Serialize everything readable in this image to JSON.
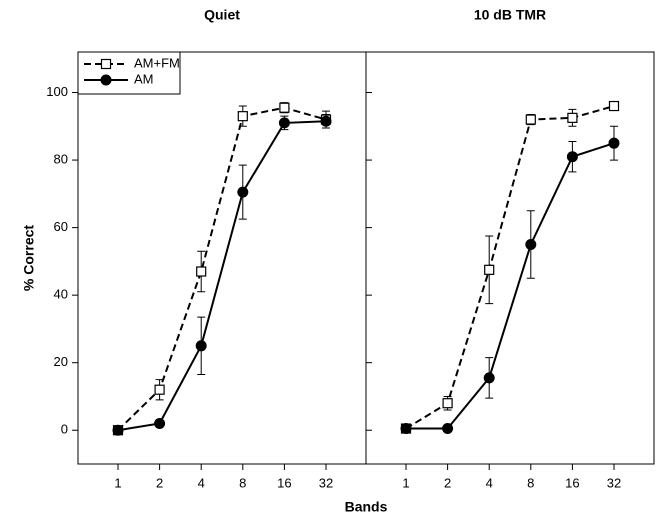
{
  "xlabel": "Bands",
  "ylabel": "% Correct",
  "chart_data": [
    {
      "type": "line",
      "title": "Quiet",
      "legend": "upper left",
      "categories": [
        "1",
        "2",
        "4",
        "8",
        "16",
        "32"
      ],
      "ylim": [
        -10,
        112
      ],
      "yticks": [
        0,
        20,
        40,
        60,
        80,
        100
      ],
      "series": [
        {
          "name": "AM+FM",
          "color": "#000000",
          "dash": true,
          "marker": "square-open",
          "values": [
            0,
            12,
            47,
            93,
            95.5,
            92
          ],
          "errors": [
            0,
            3,
            6,
            3,
            1.5,
            2.5
          ]
        },
        {
          "name": "AM",
          "color": "#000000",
          "dash": false,
          "marker": "circle-filled",
          "values": [
            0,
            2,
            25,
            70.5,
            91,
            91.5
          ],
          "errors": [
            0,
            0,
            8.5,
            8,
            2,
            2
          ]
        }
      ]
    },
    {
      "type": "line",
      "title": "10 dB TMR",
      "categories": [
        "1",
        "2",
        "4",
        "8",
        "16",
        "32"
      ],
      "ylim": [
        -10,
        112
      ],
      "yticks": [
        0,
        20,
        40,
        60,
        80,
        100
      ],
      "series": [
        {
          "color": "#000000",
          "dash": true,
          "marker": "square-open",
          "values": [
            0.5,
            8,
            47.5,
            92,
            92.5,
            96
          ],
          "errors": [
            0,
            2,
            10,
            1.5,
            2.5,
            1
          ]
        },
        {
          "color": "#000000",
          "dash": false,
          "marker": "circle-filled",
          "values": [
            0.5,
            0.5,
            15.5,
            55,
            81,
            85
          ],
          "errors": [
            0,
            0,
            6,
            10,
            4.5,
            5
          ]
        }
      ]
    }
  ]
}
